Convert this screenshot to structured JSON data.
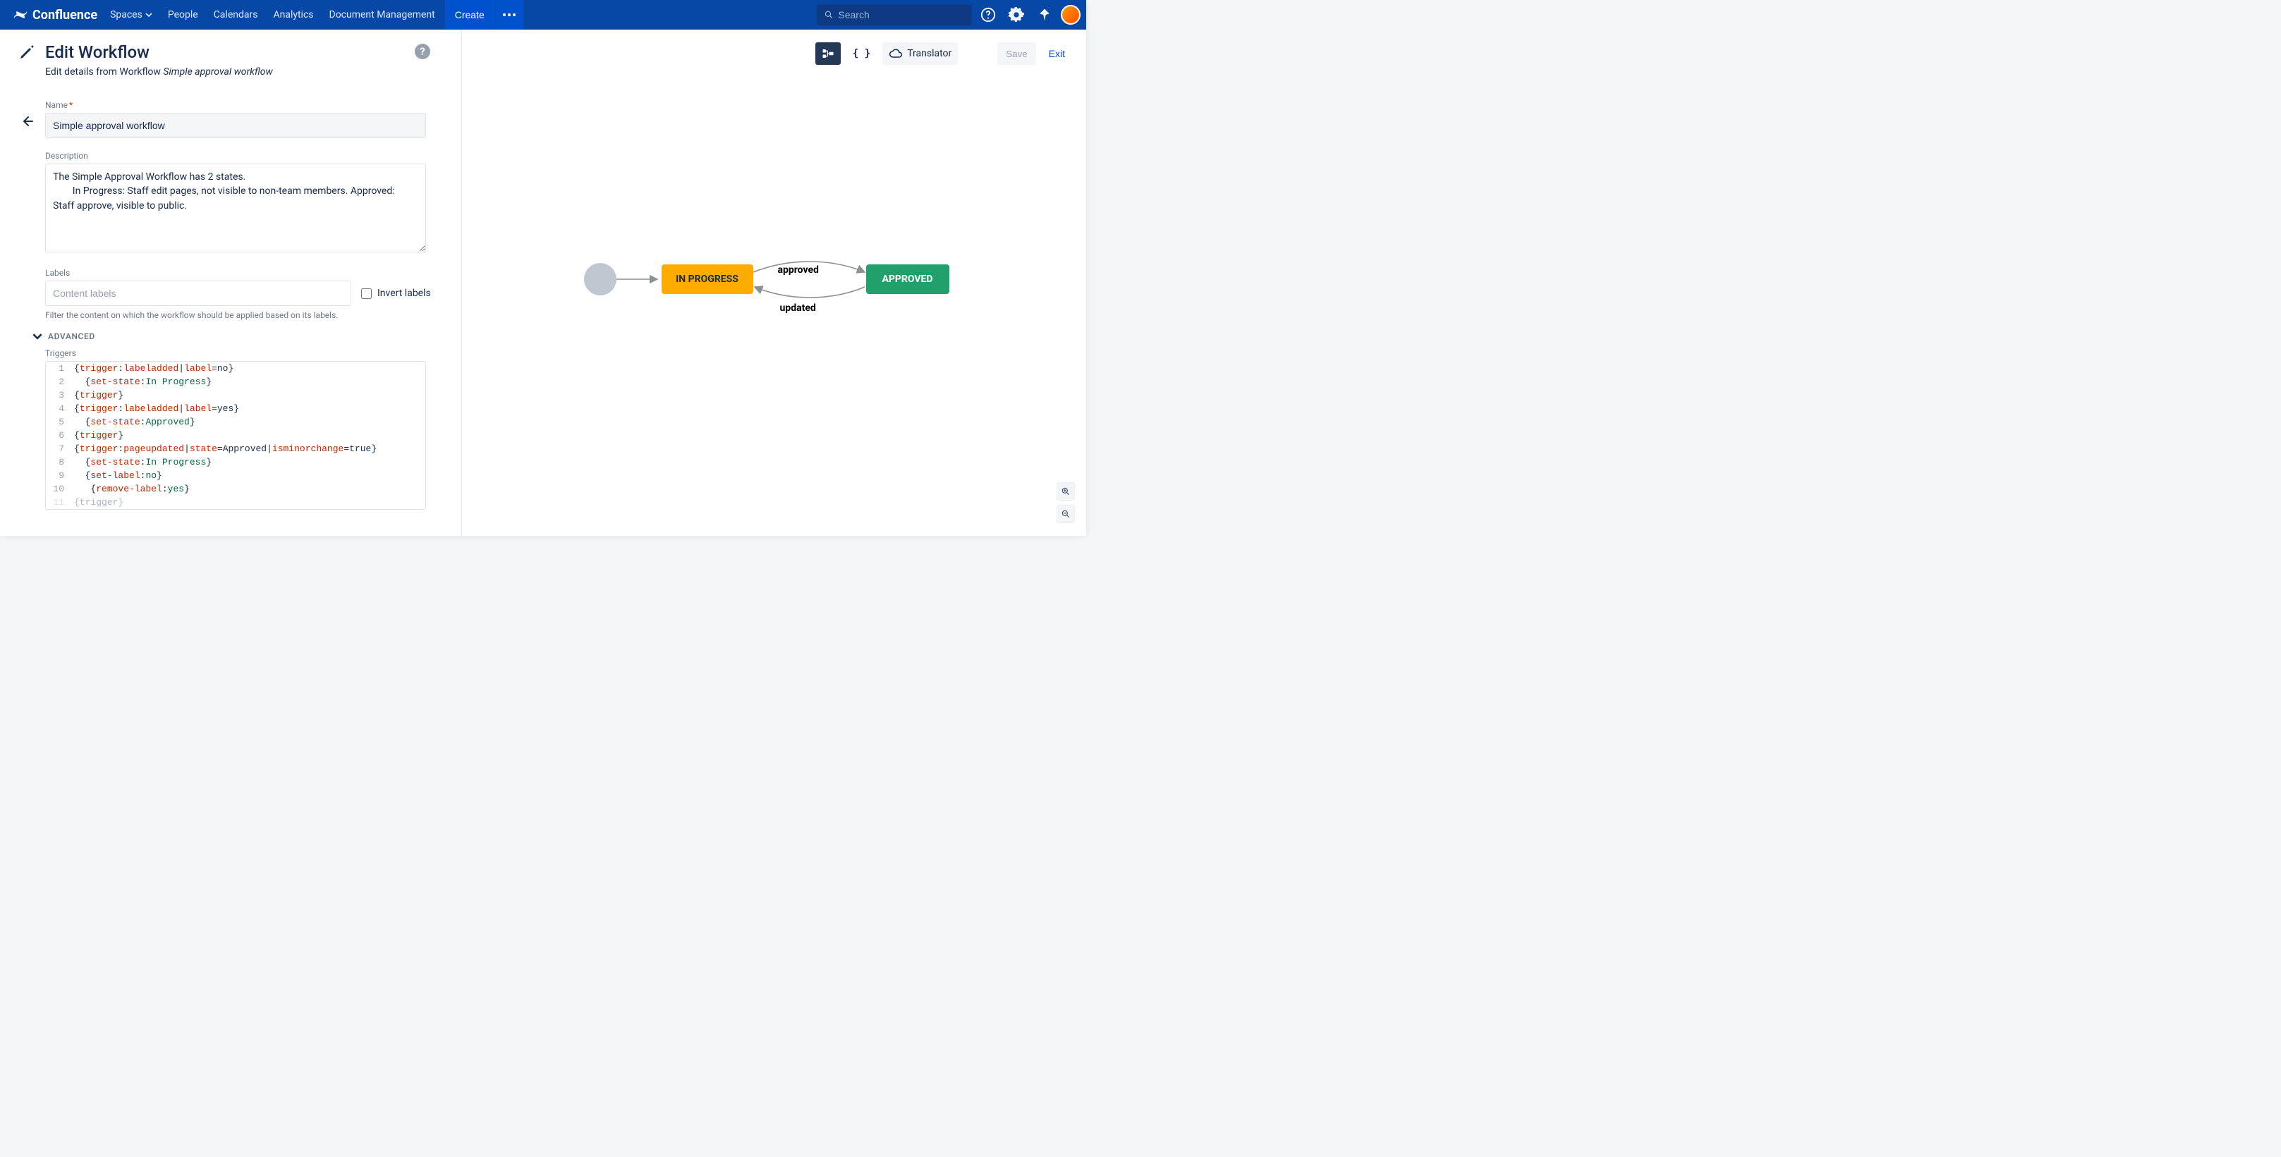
{
  "topnav": {
    "brand": "Confluence",
    "items": [
      "Spaces",
      "People",
      "Calendars",
      "Analytics",
      "Document Management"
    ],
    "createLabel": "Create",
    "searchPlaceholder": "Search"
  },
  "leftPane": {
    "title": "Edit Workflow",
    "subtitlePrefix": "Edit details from Workflow ",
    "subtitleItalic": "Simple approval workflow",
    "fields": {
      "nameLabel": "Name",
      "nameValue": "Simple approval workflow",
      "descLabel": "Description",
      "descValue": "The Simple Approval Workflow has 2 states.\n        In Progress: Staff edit pages, not visible to non-team members. Approved: Staff approve, visible to public.",
      "labelsLabel": "Labels",
      "labelsPlaceholder": "Content labels",
      "invertLabel": "Invert labels",
      "labelsHelp": "Filter the content on which the workflow should be applied based on its labels."
    },
    "advancedLabel": "ADVANCED",
    "triggersLabel": "Triggers",
    "code": [
      {
        "n": 1,
        "seg": [
          [
            "black",
            "{"
          ],
          [
            "red",
            "trigger"
          ],
          [
            "black",
            ":"
          ],
          [
            "red",
            "labeladded"
          ],
          [
            "black",
            "|"
          ],
          [
            "red",
            "label"
          ],
          [
            "black",
            "=no}"
          ]
        ]
      },
      {
        "n": 2,
        "seg": [
          [
            "black",
            "  {"
          ],
          [
            "red",
            "set-state"
          ],
          [
            "black",
            ":"
          ],
          [
            "teal",
            "In Progress"
          ],
          [
            "black",
            "}"
          ]
        ]
      },
      {
        "n": 3,
        "seg": [
          [
            "black",
            "{"
          ],
          [
            "red",
            "trigger"
          ],
          [
            "black",
            "}"
          ]
        ]
      },
      {
        "n": 4,
        "seg": [
          [
            "black",
            "{"
          ],
          [
            "red",
            "trigger"
          ],
          [
            "black",
            ":"
          ],
          [
            "red",
            "labeladded"
          ],
          [
            "black",
            "|"
          ],
          [
            "red",
            "label"
          ],
          [
            "black",
            "=yes}"
          ]
        ]
      },
      {
        "n": 5,
        "seg": [
          [
            "black",
            "  {"
          ],
          [
            "red",
            "set-state"
          ],
          [
            "black",
            ":"
          ],
          [
            "teal",
            "Approved"
          ],
          [
            "black",
            "}"
          ]
        ]
      },
      {
        "n": 6,
        "seg": [
          [
            "black",
            "{"
          ],
          [
            "red",
            "trigger"
          ],
          [
            "black",
            "}"
          ]
        ]
      },
      {
        "n": 7,
        "seg": [
          [
            "black",
            "{"
          ],
          [
            "red",
            "trigger"
          ],
          [
            "black",
            ":"
          ],
          [
            "red",
            "pageupdated"
          ],
          [
            "black",
            "|"
          ],
          [
            "red",
            "state"
          ],
          [
            "black",
            "=Approved|"
          ],
          [
            "red",
            "isminorchange"
          ],
          [
            "black",
            "=true}"
          ]
        ]
      },
      {
        "n": 8,
        "seg": [
          [
            "black",
            "  {"
          ],
          [
            "red",
            "set-state"
          ],
          [
            "black",
            ":"
          ],
          [
            "teal",
            "In Progress"
          ],
          [
            "black",
            "}"
          ]
        ]
      },
      {
        "n": 9,
        "seg": [
          [
            "black",
            "  {"
          ],
          [
            "red",
            "set-label"
          ],
          [
            "black",
            ":"
          ],
          [
            "teal",
            "no"
          ],
          [
            "black",
            "}"
          ]
        ]
      },
      {
        "n": 10,
        "seg": [
          [
            "black",
            "   {"
          ],
          [
            "red",
            "remove-label"
          ],
          [
            "black",
            ":"
          ],
          [
            "teal",
            "yes"
          ],
          [
            "black",
            "}"
          ]
        ]
      },
      {
        "n": 11,
        "faded": true,
        "seg": [
          [
            "black",
            "{trigger}"
          ]
        ]
      }
    ]
  },
  "rightPane": {
    "translatorLabel": "Translator",
    "saveLabel": "Save",
    "exitLabel": "Exit"
  },
  "diagram": {
    "nodes": {
      "inProgress": {
        "label": "IN PROGRESS",
        "bg": "#ffab00",
        "fg": "#172b4d"
      },
      "approved": {
        "label": "APPROVED",
        "bg": "#22a06b",
        "fg": "#ffffff"
      }
    },
    "edges": {
      "top": {
        "label": "approved"
      },
      "bottom": {
        "label": "updated"
      }
    },
    "startColor": "#c1c7d0",
    "arrowColor": "#8c8f94"
  }
}
